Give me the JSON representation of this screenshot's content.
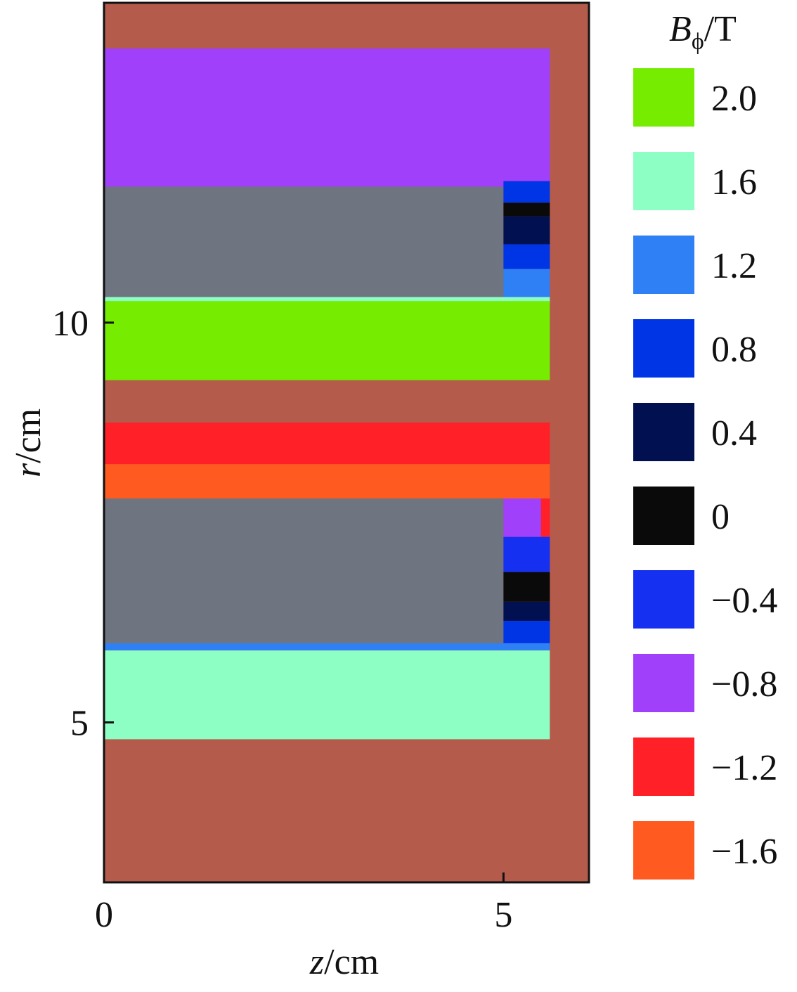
{
  "chart_data": {
    "type": "region-map",
    "x_label": {
      "symbol": "z",
      "unit": "/cm"
    },
    "y_label": {
      "symbol": "r",
      "unit": "/cm"
    },
    "xlim": [
      0,
      6.07
    ],
    "ylim": [
      3,
      14
    ],
    "xticks": [
      0,
      5
    ],
    "yticks": [
      5,
      10
    ],
    "background_color": "#b45b4c",
    "colorbar": {
      "title": {
        "symbol": "B",
        "subscript": "ϕ",
        "unit": "/T"
      },
      "levels": [
        {
          "value": 2,
          "label": "2.0"
        },
        1.6,
        1.2,
        0.8,
        0.4,
        0,
        {
          "value": -0.4,
          "label": "−0.4"
        },
        {
          "value": -0.8,
          "label": "−0.8"
        },
        {
          "value": -1.2,
          "label": "−1.2"
        },
        {
          "value": -1.6,
          "label": "−1.6"
        }
      ],
      "colors": [
        "#75ec00",
        "#8effc4",
        "#2f7ff5",
        "#0035e6",
        "#001050",
        "#0a0a0a",
        "#1530f0",
        "#a040fa",
        "#ff2028",
        "#ff5a20"
      ]
    },
    "regions": [
      {
        "z": [
          0,
          5.58
        ],
        "r": [
          11.7,
          13.43
        ],
        "level": -0.8
      },
      {
        "z": [
          0,
          5.0
        ],
        "r": [
          10.27,
          11.7
        ],
        "color": "#6e7480"
      },
      {
        "z": [
          5.0,
          5.58
        ],
        "r": [
          11.5,
          11.77
        ],
        "level": 0.8
      },
      {
        "z": [
          5.0,
          5.58
        ],
        "r": [
          11.33,
          11.5
        ],
        "level": 0
      },
      {
        "z": [
          5.0,
          5.58
        ],
        "r": [
          10.98,
          11.33
        ],
        "level": 0.4
      },
      {
        "z": [
          5.0,
          5.58
        ],
        "r": [
          10.67,
          10.98
        ],
        "level": 0.8
      },
      {
        "z": [
          5.0,
          5.58
        ],
        "r": [
          10.32,
          10.67
        ],
        "level": 1.2
      },
      {
        "z": [
          0,
          5.58
        ],
        "r": [
          10.23,
          10.32
        ],
        "level": 1.6
      },
      {
        "z": [
          0,
          5.58
        ],
        "r": [
          9.28,
          10.27
        ],
        "level": 2
      },
      {
        "z": [
          0,
          5.58
        ],
        "r": [
          8.23,
          8.75
        ],
        "level": -1.2
      },
      {
        "z": [
          0,
          5.58
        ],
        "r": [
          7.8,
          8.23
        ],
        "level": -1.6
      },
      {
        "z": [
          0,
          5.0
        ],
        "r": [
          5.99,
          7.8
        ],
        "color": "#6e7480"
      },
      {
        "z": [
          5.0,
          5.58
        ],
        "r": [
          7.32,
          7.8
        ],
        "level": -0.8
      },
      {
        "z": [
          5.47,
          5.58
        ],
        "r": [
          7.32,
          7.8
        ],
        "level": -1.2
      },
      {
        "z": [
          5.0,
          5.58
        ],
        "r": [
          6.88,
          7.32
        ],
        "level": -0.4
      },
      {
        "z": [
          5.0,
          5.58
        ],
        "r": [
          6.51,
          6.88
        ],
        "level": 0
      },
      {
        "z": [
          5.0,
          5.58
        ],
        "r": [
          6.27,
          6.51
        ],
        "level": 0.4
      },
      {
        "z": [
          5.0,
          5.58
        ],
        "r": [
          5.99,
          6.27
        ],
        "level": 0.8
      },
      {
        "z": [
          0,
          5.58
        ],
        "r": [
          5.9,
          5.99
        ],
        "level": 1.2
      },
      {
        "z": [
          0,
          5.58
        ],
        "r": [
          4.79,
          5.9
        ],
        "level": 1.6
      }
    ]
  }
}
